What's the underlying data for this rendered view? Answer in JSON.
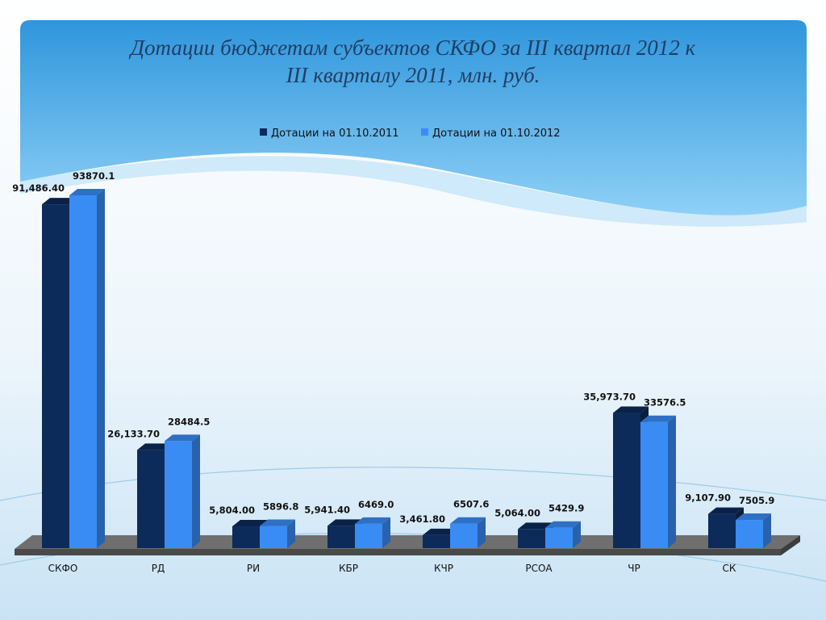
{
  "chart_data": {
    "type": "bar3d",
    "title": "Дотации бюджетам субъектов СКФО за III квартал 2012 к III кварталу 2011, млн. руб.",
    "categories": [
      "СКФО",
      "РД",
      "РИ",
      "КБР",
      "КЧР",
      "РСОА",
      "ЧР",
      "СК"
    ],
    "series": [
      {
        "name": "Дотации на 01.10.2011",
        "color": "#0d2b5a",
        "values": [
          91486.4,
          26133.7,
          5804.0,
          5941.4,
          3461.8,
          5064.0,
          35973.7,
          9107.9
        ],
        "value_labels": [
          "91,486.40",
          "26,133.70",
          "5,804.00",
          "5,941.40",
          "3,461.80",
          "5,064.00",
          "35,973.70",
          "9,107.90"
        ]
      },
      {
        "name": "Дотации на 01.10.2012",
        "color": "#3a8cf5",
        "values": [
          93870.1,
          28484.5,
          5896.8,
          6469.0,
          6507.6,
          5429.9,
          33576.5,
          7505.9
        ],
        "value_labels": [
          "93870.1",
          "28484.5",
          "5896.8",
          "6469.0",
          "6507.6",
          "5429.9",
          "33576.5",
          "7505.9"
        ]
      }
    ],
    "legend": "top"
  }
}
